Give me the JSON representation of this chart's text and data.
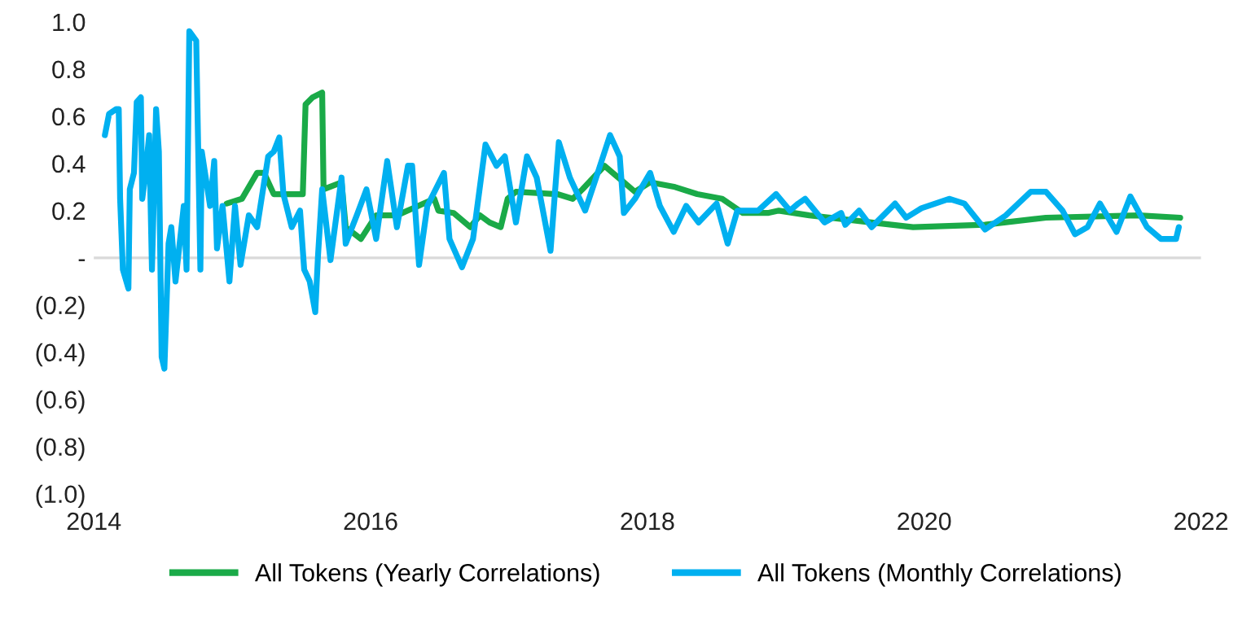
{
  "chart_data": {
    "type": "line",
    "xlim": [
      2014,
      2022
    ],
    "xticks": [
      2014,
      2016,
      2018,
      2020,
      2022
    ],
    "ylim": [
      -1.0,
      1.0
    ],
    "yticks": [
      {
        "value": 1.0,
        "label": "1.0"
      },
      {
        "value": 0.8,
        "label": "0.8"
      },
      {
        "value": 0.6,
        "label": "0.6"
      },
      {
        "value": 0.4,
        "label": "0.4"
      },
      {
        "value": 0.2,
        "label": "0.2"
      },
      {
        "value": 0,
        "label": "-"
      },
      {
        "value": -0.2,
        "label": "(0.2)"
      },
      {
        "value": -0.4,
        "label": "(0.4)"
      },
      {
        "value": -0.6,
        "label": "(0.6)"
      },
      {
        "value": -0.8,
        "label": "(0.8)"
      },
      {
        "value": -1.0,
        "label": "(1.0)"
      }
    ],
    "grid": false,
    "legend": "bottom",
    "marker": "none",
    "line_style": "solid",
    "ref_lines": [
      {
        "axis": "y",
        "value": 0,
        "color": "#d9d9d9"
      }
    ],
    "series": [
      {
        "name": "All Tokens (Yearly Correlations)",
        "color": "#1aaa48",
        "x": [
          2014.96,
          2015.07,
          2015.18,
          2015.23,
          2015.3,
          2015.51,
          2015.53,
          2015.58,
          2015.65,
          2015.66,
          2015.79,
          2015.82,
          2015.93,
          2016.04,
          2016.19,
          2016.46,
          2016.49,
          2016.6,
          2016.72,
          2016.79,
          2016.86,
          2016.94,
          2016.99,
          2017.05,
          2017.35,
          2017.46,
          2017.53,
          2017.69,
          2017.75,
          2017.83,
          2017.91,
          2018.02,
          2018.2,
          2018.36,
          2018.54,
          2018.69,
          2018.87,
          2018.95,
          2019.17,
          2019.62,
          2019.92,
          2020.44,
          2020.88,
          2021.55,
          2021.85
        ],
        "values": [
          0.23,
          0.25,
          0.36,
          0.36,
          0.27,
          0.27,
          0.65,
          0.68,
          0.7,
          0.29,
          0.32,
          0.13,
          0.08,
          0.18,
          0.18,
          0.25,
          0.2,
          0.19,
          0.13,
          0.18,
          0.15,
          0.13,
          0.25,
          0.28,
          0.27,
          0.25,
          0.29,
          0.39,
          0.36,
          0.32,
          0.28,
          0.32,
          0.3,
          0.27,
          0.25,
          0.19,
          0.19,
          0.2,
          0.18,
          0.15,
          0.13,
          0.14,
          0.17,
          0.18,
          0.17
        ]
      },
      {
        "name": "All Tokens (Monthly Correlations)",
        "color": "#00b0f0",
        "x": [
          2014.08,
          2014.11,
          2014.16,
          2014.18,
          2014.19,
          2014.21,
          2014.25,
          2014.26,
          2014.29,
          2014.31,
          2014.34,
          2014.35,
          2014.37,
          2014.4,
          2014.42,
          2014.45,
          2014.47,
          2014.49,
          2014.51,
          2014.54,
          2014.56,
          2014.59,
          2014.65,
          2014.67,
          2014.69,
          2014.74,
          2014.77,
          2014.78,
          2014.84,
          2014.87,
          2014.89,
          2014.93,
          2014.98,
          2015.02,
          2015.06,
          2015.12,
          2015.18,
          2015.26,
          2015.3,
          2015.34,
          2015.37,
          2015.43,
          2015.49,
          2015.52,
          2015.56,
          2015.6,
          2015.62,
          2015.65,
          2015.71,
          2015.79,
          2015.82,
          2015.9,
          2015.97,
          2016.04,
          2016.12,
          2016.19,
          2016.27,
          2016.3,
          2016.35,
          2016.41,
          2016.53,
          2016.57,
          2016.66,
          2016.74,
          2016.83,
          2016.91,
          2016.97,
          2017.05,
          2017.13,
          2017.2,
          2017.3,
          2017.36,
          2017.44,
          2017.55,
          2017.63,
          2017.73,
          2017.8,
          2017.83,
          2017.91,
          2018.02,
          2018.09,
          2018.19,
          2018.28,
          2018.37,
          2018.5,
          2018.58,
          2018.65,
          2018.8,
          2018.93,
          2019.03,
          2019.09,
          2019.14,
          2019.28,
          2019.4,
          2019.43,
          2019.53,
          2019.62,
          2019.79,
          2019.87,
          2019.98,
          2020.18,
          2020.29,
          2020.44,
          2020.59,
          2020.77,
          2020.88,
          2021.0,
          2021.09,
          2021.18,
          2021.27,
          2021.39,
          2021.49,
          2021.61,
          2021.71,
          2021.82,
          2021.84
        ],
        "values": [
          0.52,
          0.61,
          0.63,
          0.63,
          0.25,
          -0.05,
          -0.13,
          0.29,
          0.36,
          0.66,
          0.68,
          0.25,
          0.34,
          0.52,
          -0.05,
          0.63,
          0.45,
          -0.42,
          -0.47,
          0.06,
          0.13,
          -0.1,
          0.22,
          -0.05,
          0.96,
          0.92,
          -0.05,
          0.45,
          0.22,
          0.41,
          0.04,
          0.22,
          -0.1,
          0.22,
          -0.03,
          0.18,
          0.13,
          0.43,
          0.45,
          0.51,
          0.27,
          0.13,
          0.2,
          -0.05,
          -0.1,
          -0.23,
          0.01,
          0.29,
          -0.01,
          0.34,
          0.06,
          0.18,
          0.29,
          0.08,
          0.41,
          0.13,
          0.39,
          0.39,
          -0.03,
          0.22,
          0.36,
          0.08,
          -0.04,
          0.08,
          0.48,
          0.39,
          0.43,
          0.15,
          0.43,
          0.34,
          0.03,
          0.49,
          0.34,
          0.2,
          0.34,
          0.52,
          0.43,
          0.19,
          0.25,
          0.36,
          0.22,
          0.11,
          0.22,
          0.15,
          0.23,
          0.06,
          0.2,
          0.2,
          0.27,
          0.2,
          0.23,
          0.25,
          0.15,
          0.19,
          0.14,
          0.2,
          0.13,
          0.23,
          0.17,
          0.21,
          0.25,
          0.23,
          0.12,
          0.18,
          0.28,
          0.28,
          0.2,
          0.1,
          0.13,
          0.23,
          0.11,
          0.26,
          0.13,
          0.08,
          0.08,
          0.13
        ]
      }
    ]
  }
}
